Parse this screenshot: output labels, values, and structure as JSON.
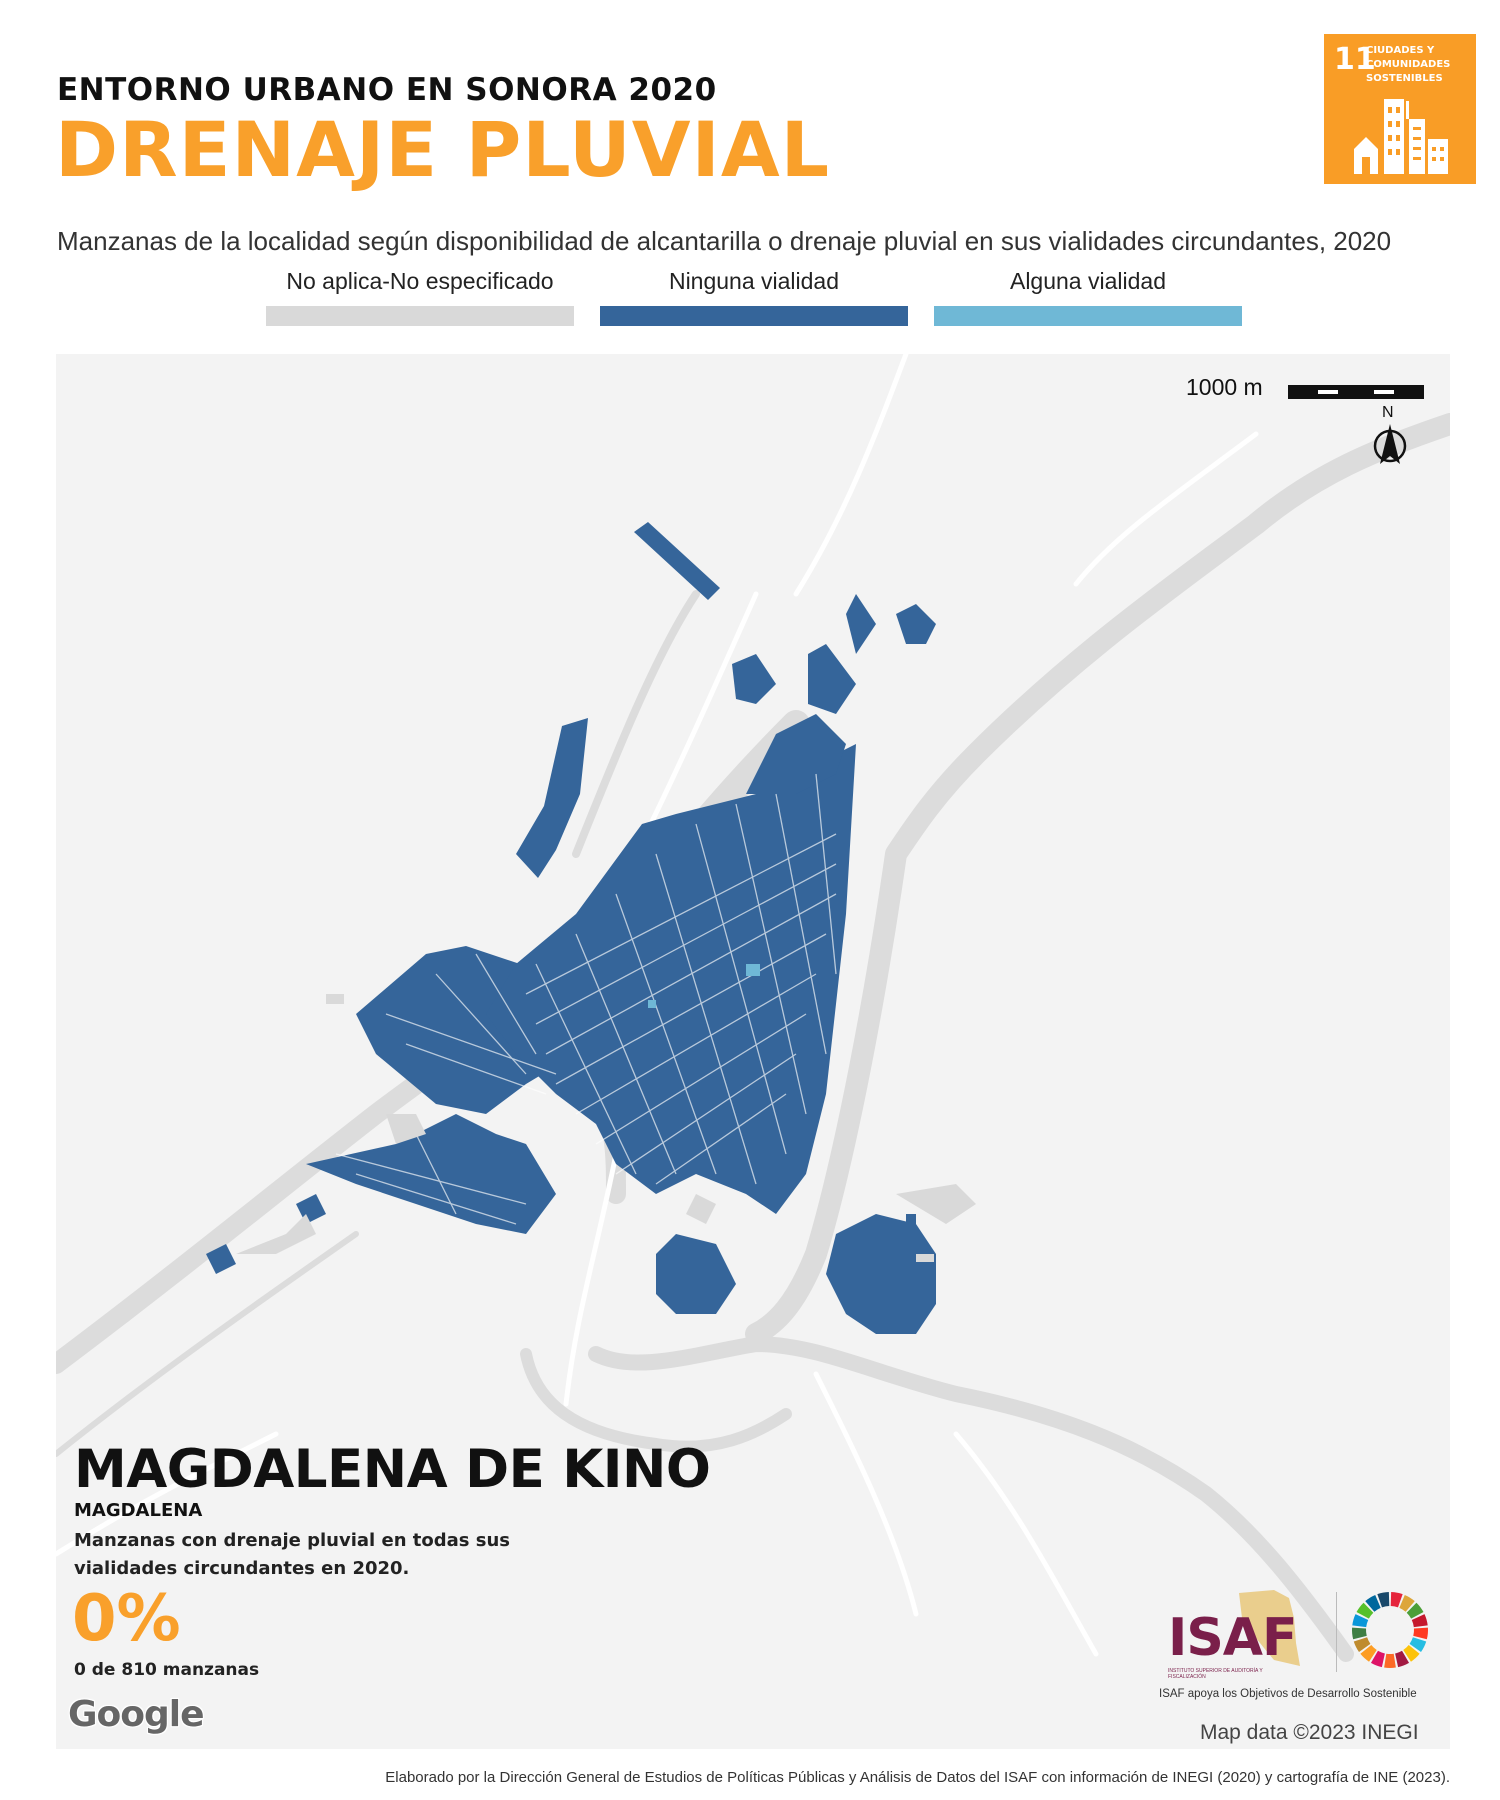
{
  "header": {
    "kicker": "ENTORNO URBANO EN SONORA 2020",
    "title": "DRENAJE PLUVIAL",
    "subtitle": "Manzanas de la localidad según disponibilidad de alcantarilla o drenaje pluvial en sus vialidades circundantes, 2020"
  },
  "sdg_badge": {
    "number": "11",
    "text": "CIUDADES Y COMUNIDADES SOSTENIBLES",
    "color": "#f99d26"
  },
  "legend": {
    "items": [
      {
        "label": "No aplica-No especificado",
        "color": "#d9d9d9"
      },
      {
        "label": "Ninguna vialidad",
        "color": "#35659a"
      },
      {
        "label": "Alguna vialidad",
        "color": "#6fb8d6"
      }
    ]
  },
  "map": {
    "scale_label": "1000 m",
    "north_label": "N",
    "attribution": "Map data ©2023 INEGI",
    "provider": "Google",
    "colors": {
      "background": "#f3f3f3",
      "road": "#dcdcdc",
      "minor_road": "#ffffff",
      "block": "#35659a",
      "block_some": "#6fb8d6",
      "block_na": "#d9d9d9"
    }
  },
  "locality": {
    "name": "MAGDALENA DE KINO",
    "municipality": "MAGDALENA",
    "description": "Manzanas con drenaje pluvial en todas sus vialidades circundantes en 2020.",
    "percentage": "0%",
    "count_text": "0 de 810 manzanas"
  },
  "logos": {
    "isaf": "ISAF",
    "isaf_fullname": "INSTITUTO SUPERIOR DE AUDITORÍA Y FISCALIZACIÓN",
    "caption": "ISAF apoya los Objetivos de Desarrollo Sostenible"
  },
  "footer": "Elaborado por la Dirección General de Estudios de Políticas Públicas y Análisis de Datos del ISAF con información de INEGI (2020) y cartografía de INE (2023)."
}
